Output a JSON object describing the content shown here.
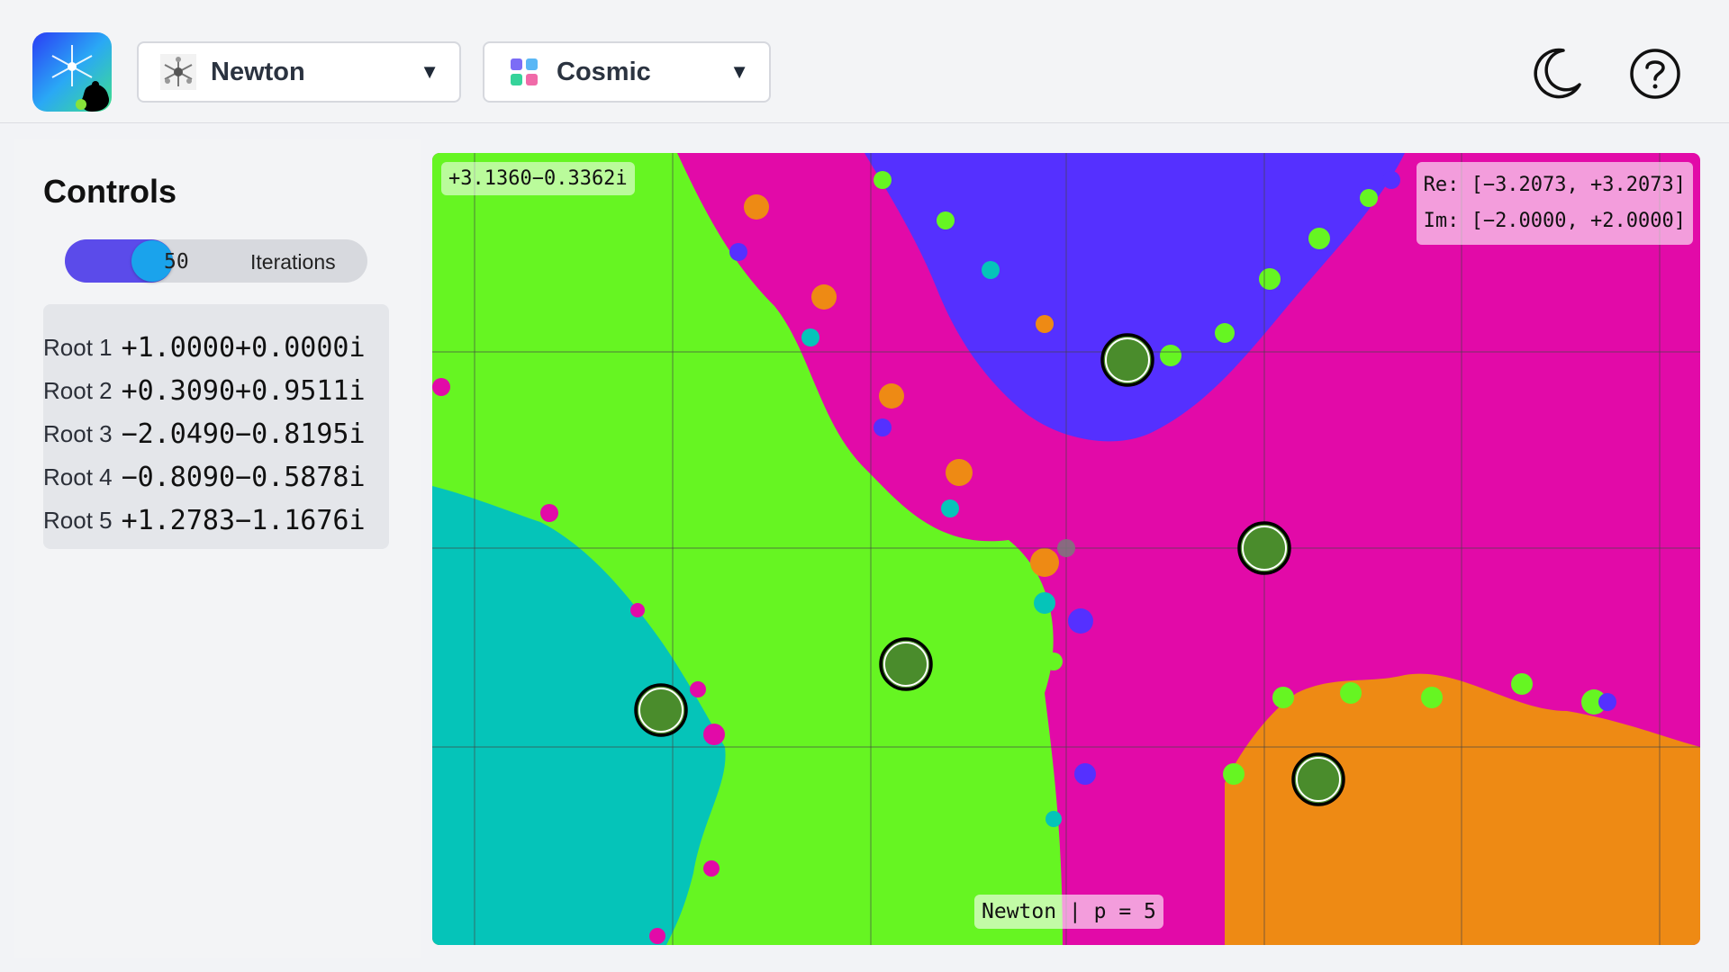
{
  "header": {
    "app_logo": "mandelbrot-logo-icon",
    "fractal_dropdown": {
      "selected": "Newton",
      "icon": "newton-fractal-icon"
    },
    "palette_dropdown": {
      "selected": "Cosmic",
      "icon": "palette-grid-icon"
    },
    "theme_toggle": "moon-icon",
    "help": "question-circle-icon"
  },
  "sidebar": {
    "title": "Controls",
    "iterations": {
      "value": "50",
      "label": "Iterations",
      "fraction": 0.2
    },
    "roots": [
      {
        "label": "Root 1",
        "value": "+1.0000+0.0000i"
      },
      {
        "label": "Root 2",
        "value": "+0.3090+0.9511i"
      },
      {
        "label": "Root 3",
        "value": "−2.0490−0.8195i"
      },
      {
        "label": "Root 4",
        "value": "−0.8090−0.5878i"
      },
      {
        "label": "Root 5",
        "value": "+1.2783−1.1676i"
      }
    ]
  },
  "canvas": {
    "cursor_coord": "+3.1360−0.3362i",
    "re_range": "Re: [−3.2073, +3.2073]",
    "im_range": "Im: [−2.0000, +2.0000]",
    "status": "Newton | p = 5",
    "colors": {
      "basin_magenta": "#e20aa8",
      "basin_blue": "#5530ff",
      "basin_green": "#66f522",
      "basin_teal": "#05c4b9",
      "basin_orange": "#ee8a14",
      "root_marker": "#4a8c2c"
    }
  }
}
